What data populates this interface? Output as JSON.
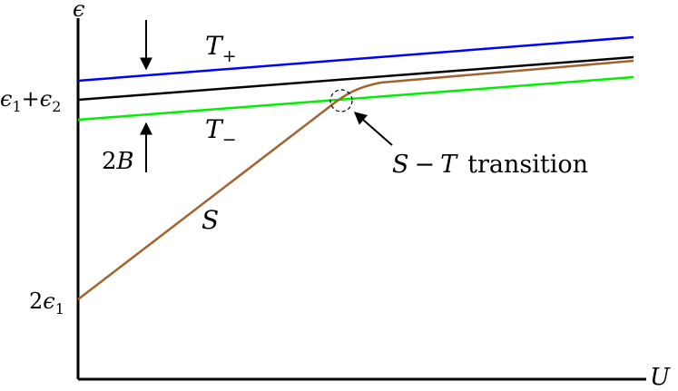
{
  "axes": {
    "y_label": "ϵ",
    "x_label": "U"
  },
  "y_ticks": {
    "sum_lhs": "ϵ",
    "sum_lhs_sub": "1",
    "sum_plus": "+",
    "sum_rhs": "ϵ",
    "sum_rhs_sub": "2",
    "low_coef": "2",
    "low_sym": "ϵ",
    "low_sub": "1"
  },
  "curves": [
    {
      "id": "T_plus",
      "name": "T",
      "subscript": "+",
      "color": "#0000ff"
    },
    {
      "id": "T_zero",
      "color": "#000000"
    },
    {
      "id": "T_minus",
      "name": "T",
      "subscript": "−",
      "color": "#00ee00"
    },
    {
      "id": "S",
      "name": "S",
      "color": "#a0642f"
    }
  ],
  "splitting": {
    "coef": "2",
    "sym": "B"
  },
  "transition": {
    "s": "S",
    "minus": "−",
    "t": "T",
    "word": "transition"
  }
}
